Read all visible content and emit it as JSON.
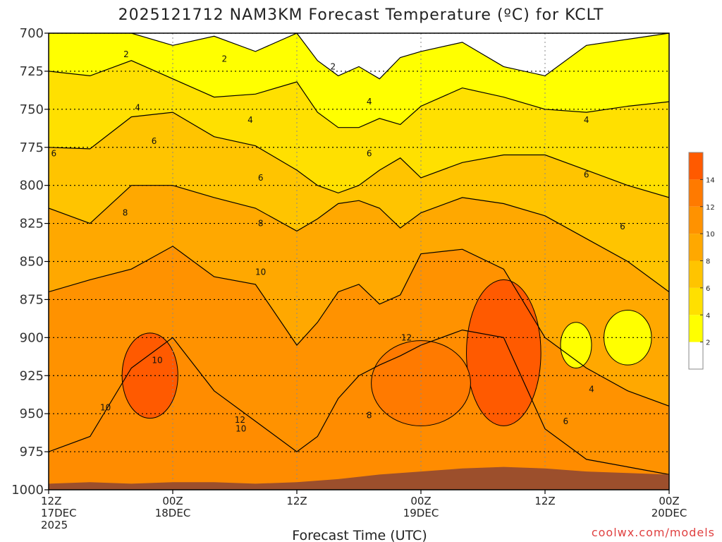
{
  "chart_data": {
    "type": "heatmap",
    "title": "2025121712 NAM3KM Forecast Temperature (ºC) for KCLT",
    "xlabel": "Forecast Time (UTC)",
    "ylabel": "",
    "y_ticks": [
      700,
      725,
      750,
      775,
      800,
      825,
      850,
      875,
      900,
      925,
      950,
      975,
      1000
    ],
    "ylim": [
      1000,
      700
    ],
    "xlim": [
      0,
      60
    ],
    "x_ticks": [
      {
        "hour": 0,
        "lines": [
          "12Z",
          "17DEC",
          "2025"
        ]
      },
      {
        "hour": 12,
        "lines": [
          "00Z",
          "18DEC"
        ]
      },
      {
        "hour": 24,
        "lines": [
          "12Z"
        ]
      },
      {
        "hour": 36,
        "lines": [
          "00Z",
          "19DEC"
        ]
      },
      {
        "hour": 48,
        "lines": [
          "12Z"
        ]
      },
      {
        "hour": 60,
        "lines": [
          "00Z",
          "20DEC"
        ]
      }
    ],
    "colorbar": {
      "levels": [
        0,
        2,
        4,
        6,
        8,
        10,
        12,
        14,
        16
      ],
      "tick_labels": [
        "2",
        "4",
        "6",
        "8",
        "10",
        "12",
        "14"
      ],
      "colors": [
        "#ffffff",
        "#ffff00",
        "#ffe000",
        "#ffc400",
        "#ffa800",
        "#ff9200",
        "#ff7a00",
        "#ff5a00"
      ]
    },
    "series": [
      {
        "name": "2°C isotherm",
        "hours": [
          0,
          4,
          8,
          12,
          16,
          20,
          24,
          26,
          28,
          30,
          32,
          34,
          36,
          40,
          44,
          48,
          52,
          56,
          60
        ],
        "pressure": [
          700,
          700,
          700,
          708,
          702,
          712,
          700,
          718,
          728,
          722,
          730,
          716,
          712,
          706,
          722,
          728,
          708,
          704,
          700
        ]
      },
      {
        "name": "4°C isotherm",
        "hours": [
          0,
          4,
          8,
          12,
          16,
          20,
          24,
          26,
          28,
          30,
          32,
          34,
          36,
          40,
          44,
          48,
          52,
          56,
          60
        ],
        "pressure": [
          725,
          728,
          718,
          730,
          742,
          740,
          732,
          752,
          762,
          762,
          756,
          760,
          748,
          736,
          742,
          750,
          752,
          748,
          745
        ]
      },
      {
        "name": "6°C isotherm",
        "hours": [
          0,
          4,
          8,
          12,
          16,
          20,
          24,
          26,
          28,
          30,
          32,
          34,
          36,
          40,
          44,
          48,
          52,
          56,
          60
        ],
        "pressure": [
          775,
          776,
          755,
          752,
          768,
          774,
          790,
          800,
          805,
          800,
          790,
          782,
          795,
          785,
          780,
          780,
          790,
          800,
          808
        ]
      },
      {
        "name": "8°C isotherm",
        "hours": [
          0,
          4,
          8,
          12,
          16,
          20,
          24,
          26,
          28,
          30,
          32,
          34,
          36,
          40,
          44,
          48,
          52,
          56,
          60
        ],
        "pressure": [
          815,
          825,
          800,
          800,
          808,
          815,
          830,
          822,
          812,
          810,
          815,
          828,
          818,
          808,
          812,
          820,
          835,
          850,
          870
        ]
      },
      {
        "name": "10°C isotherm",
        "hours": [
          0,
          4,
          8,
          12,
          16,
          20,
          24,
          26,
          28,
          30,
          32,
          34,
          36,
          40,
          44,
          48,
          52,
          56,
          60
        ],
        "pressure": [
          870,
          862,
          855,
          840,
          860,
          865,
          905,
          890,
          870,
          865,
          878,
          872,
          845,
          842,
          855,
          900,
          920,
          935,
          945
        ]
      },
      {
        "name": "12°C isotherm",
        "hours": [
          0,
          4,
          8,
          12,
          16,
          20,
          24,
          26,
          28,
          30,
          32,
          34,
          36,
          40,
          44,
          48,
          52,
          56,
          60
        ],
        "pressure": [
          975,
          965,
          920,
          900,
          935,
          955,
          975,
          965,
          940,
          925,
          918,
          912,
          905,
          895,
          900,
          960,
          980,
          985,
          990
        ]
      }
    ],
    "annotations": [
      "2",
      "2",
      "2",
      "4",
      "4",
      "4",
      "4",
      "6",
      "6",
      "6",
      "6",
      "6",
      "6",
      "8",
      "8",
      "8",
      "10",
      "10",
      "10",
      "10",
      "12",
      "12",
      "4",
      "6"
    ]
  },
  "credit": "coolwx.com/models"
}
